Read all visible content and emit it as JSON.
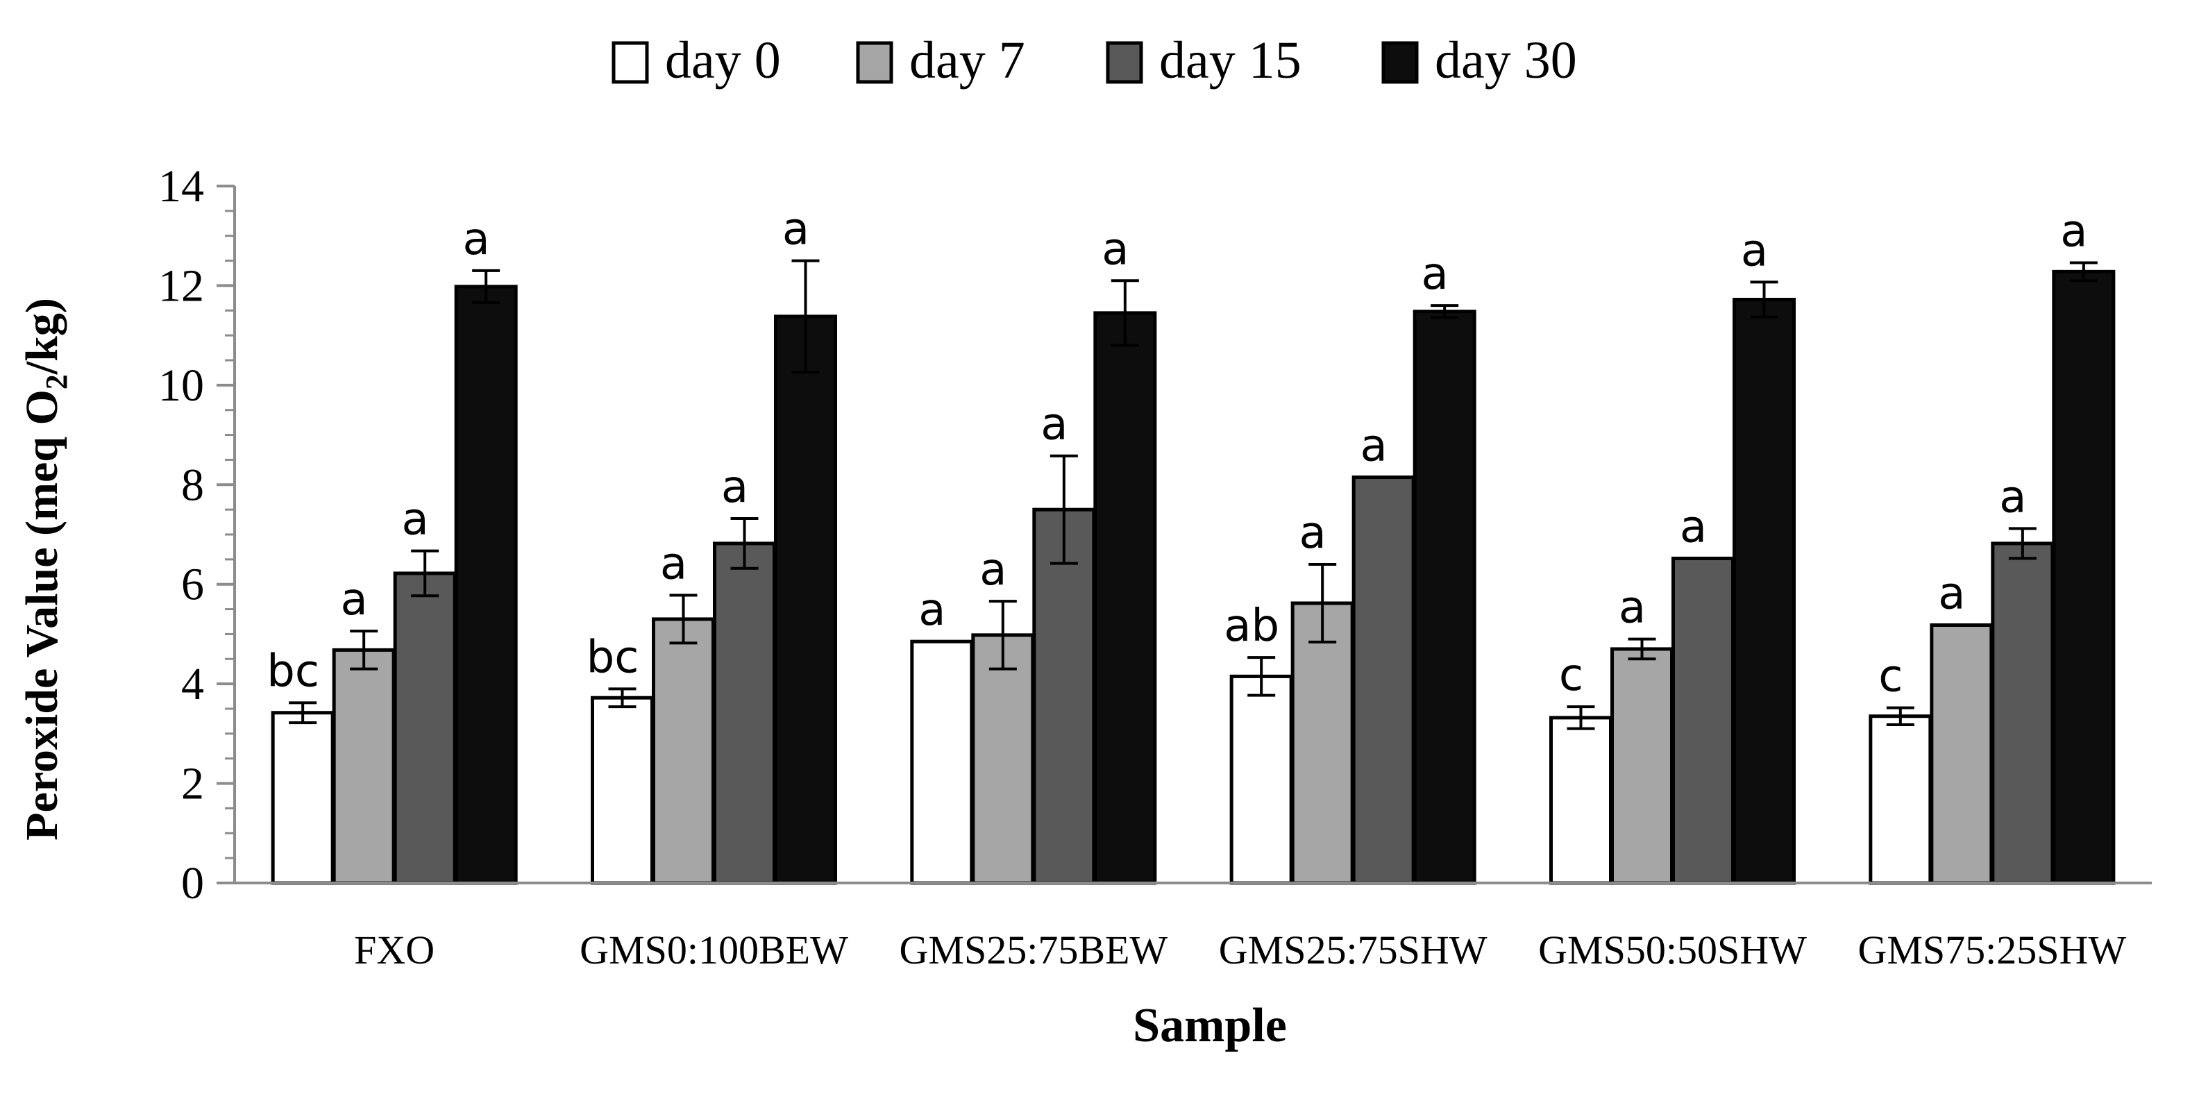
{
  "chart_data": {
    "type": "bar",
    "title": "",
    "xlabel": "Sample",
    "ylabel": "Peroxide Value (meq O2/kg)",
    "ylabel_parts": {
      "before": "Peroxide Value (meq O",
      "sub": "2",
      "after": "/kg)"
    },
    "ylim": [
      0,
      14
    ],
    "ytick_labels": [
      "0",
      "2",
      "4",
      "6",
      "8",
      "10",
      "12",
      "14"
    ],
    "grid": false,
    "legend_position": "top-center",
    "categories": [
      "FXO",
      "GMS0:100BEW",
      "GMS25:75BEW",
      "GMS25:75SHW",
      "GMS50:50SHW",
      "GMS75:25SHW"
    ],
    "series": [
      {
        "name": "day 0",
        "color": "#ffffff",
        "values": [
          3.42,
          3.72,
          4.85,
          4.15,
          3.32,
          3.35
        ],
        "errors": [
          0.2,
          0.18,
          0.0,
          0.38,
          0.22,
          0.17
        ],
        "letters": [
          "bc",
          "bc",
          "a",
          "ab",
          "c",
          "c"
        ]
      },
      {
        "name": "day 7",
        "color": "#a6a6a6",
        "values": [
          4.68,
          5.3,
          4.98,
          5.62,
          4.7,
          5.18
        ],
        "errors": [
          0.38,
          0.48,
          0.68,
          0.78,
          0.2,
          0.0
        ],
        "letters": [
          "a",
          "a",
          "a",
          "a",
          "a",
          "a"
        ]
      },
      {
        "name": "day 15",
        "color": "#595959",
        "values": [
          6.22,
          6.82,
          7.5,
          8.15,
          6.52,
          6.82
        ],
        "errors": [
          0.45,
          0.5,
          1.08,
          0.0,
          0.0,
          0.3
        ],
        "letters": [
          "a",
          "a",
          "a",
          "a",
          "a",
          "a"
        ]
      },
      {
        "name": "day 30",
        "color": "#0d0d0d",
        "values": [
          11.98,
          11.38,
          11.45,
          11.48,
          11.72,
          12.28
        ],
        "errors": [
          0.32,
          1.12,
          0.65,
          0.12,
          0.35,
          0.18
        ],
        "letters": [
          "a",
          "a",
          "a",
          "a",
          "a",
          "a"
        ]
      }
    ]
  }
}
